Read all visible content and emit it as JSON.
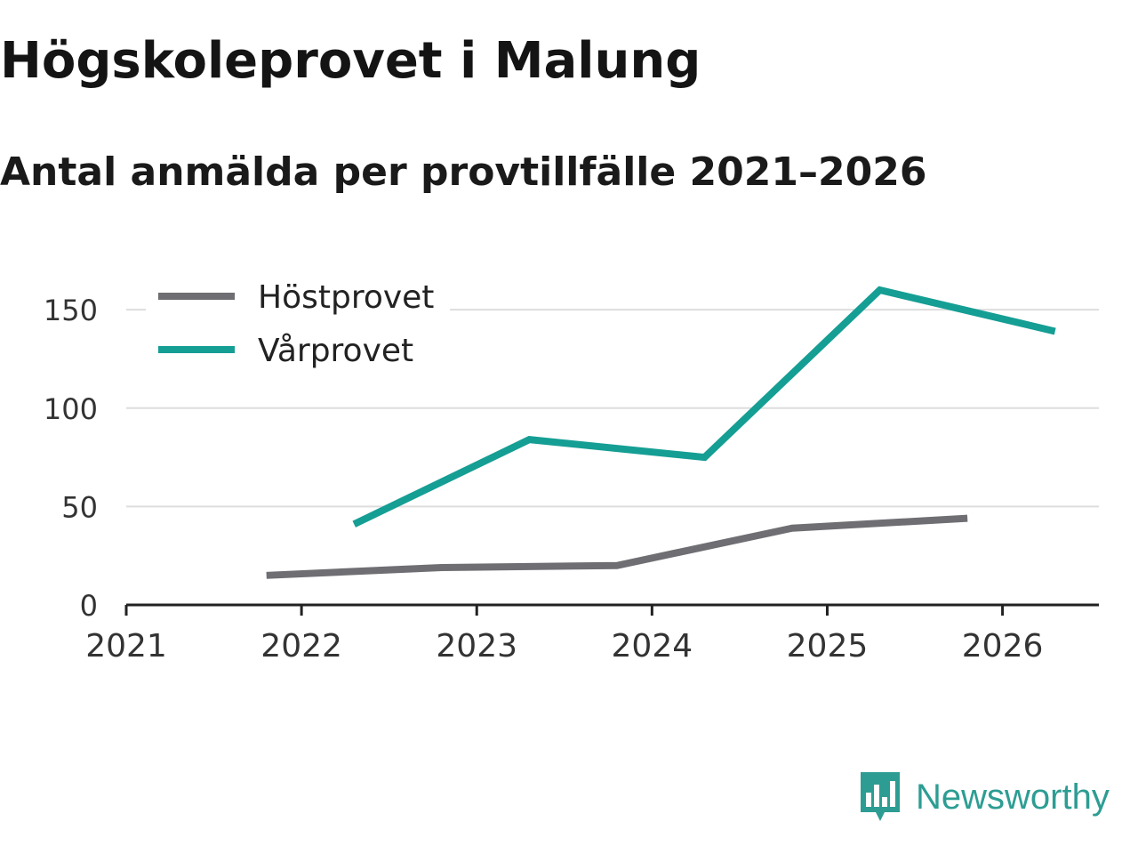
{
  "header": {
    "title": "Högskoleprovet i Malung",
    "subtitle": "Antal anmälda per provtillfälle 2021–2026"
  },
  "brand": {
    "name": "Newsworthy",
    "icon": "newsworthy-logo-icon",
    "color": "#2d9d93"
  },
  "chart_data": {
    "type": "line",
    "title": "Högskoleprovet i Malung",
    "subtitle": "Antal anmälda per provtillfälle 2021–2026",
    "xlabel": "",
    "ylabel": "",
    "xlim": [
      2021,
      2026.55
    ],
    "ylim": [
      0,
      160
    ],
    "x_ticks": [
      2021,
      2022,
      2023,
      2024,
      2025,
      2026
    ],
    "y_ticks": [
      0,
      50,
      100,
      150
    ],
    "grid": true,
    "legend": "top-left",
    "series": [
      {
        "name": "Höstprovet",
        "color": "#6e6e73",
        "x": [
          2021.8,
          2022.8,
          2023.8,
          2024.8,
          2025.8
        ],
        "values": [
          15,
          19,
          20,
          39,
          44
        ]
      },
      {
        "name": "Vårprovet",
        "color": "#159e94",
        "x": [
          2022.3,
          2023.3,
          2024.3,
          2025.3,
          2026.3
        ],
        "values": [
          41,
          84,
          75,
          160,
          139
        ]
      }
    ]
  }
}
